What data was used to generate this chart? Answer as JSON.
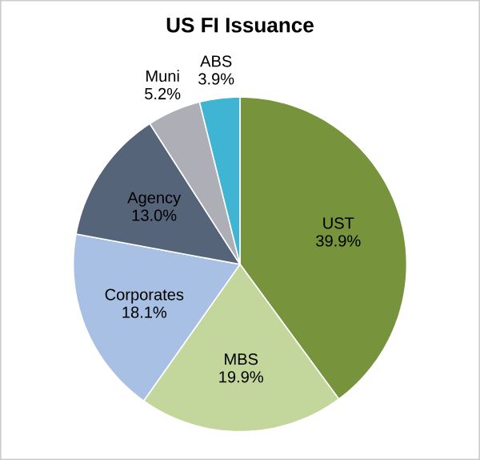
{
  "chart_data": {
    "type": "pie",
    "title": "US FI Issuance",
    "categories": [
      "UST",
      "MBS",
      "Corporates",
      "Agency",
      "Muni",
      "ABS"
    ],
    "values": [
      39.9,
      19.9,
      18.1,
      13.0,
      5.2,
      3.9
    ],
    "value_labels": [
      "39.9%",
      "19.9%",
      "18.1%",
      "13.0%",
      "5.2%",
      "3.9%"
    ],
    "colors": [
      "#77933c",
      "#c3d69b",
      "#a7c0e3",
      "#56647a",
      "#aeaeb6",
      "#3fb5d3"
    ]
  }
}
